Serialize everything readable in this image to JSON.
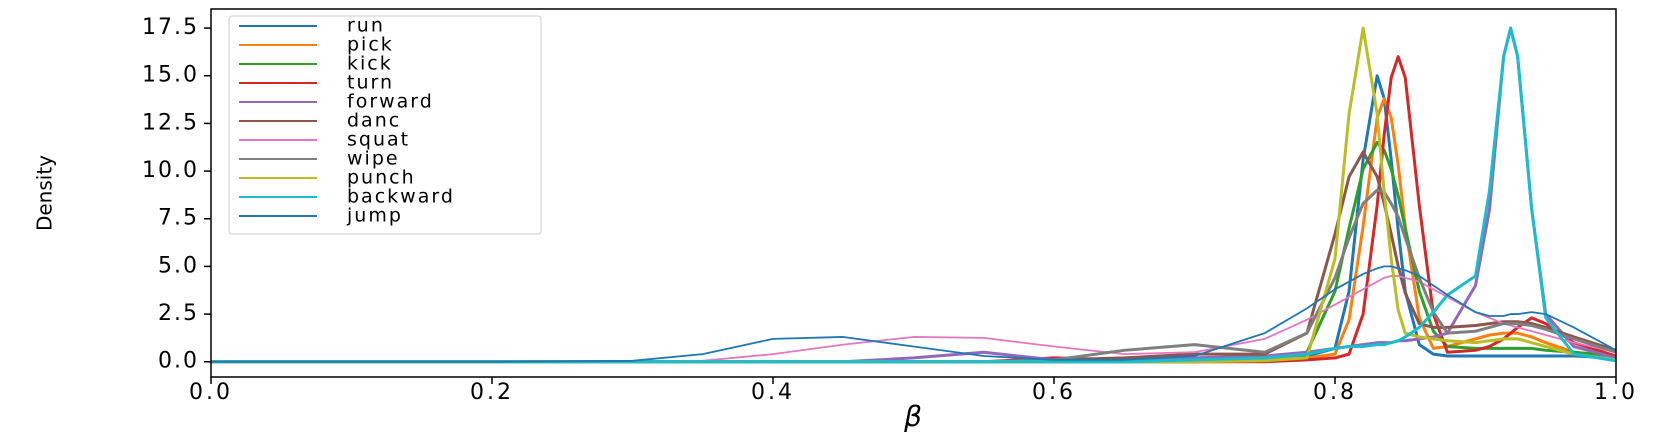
{
  "chart_data": {
    "type": "line",
    "x_label": "β",
    "y_label": "Density",
    "x": [
      0,
      0.1,
      0.2,
      0.3,
      0.35,
      0.4,
      0.45,
      0.5,
      0.55,
      0.6,
      0.65,
      0.7,
      0.75,
      0.78,
      0.8,
      0.81,
      0.82,
      0.83,
      0.835,
      0.84,
      0.845,
      0.85,
      0.86,
      0.87,
      0.88,
      0.9,
      0.91,
      0.92,
      0.925,
      0.93,
      0.94,
      0.95,
      0.97,
      1.0
    ],
    "xlim": [
      0,
      1
    ],
    "xticks": [
      {
        "value": 0,
        "label": "0.0"
      },
      0.2,
      0.4,
      0.6,
      0.8,
      {
        "value": 1,
        "label": "1.0"
      }
    ],
    "ylim": [
      -0.8,
      18.5
    ],
    "yticks": [
      {
        "value": 0,
        "label": "0.0"
      },
      2.5,
      {
        "value": 5,
        "label": "5.0"
      },
      7.5,
      {
        "value": 10,
        "label": "10.0"
      },
      12.5,
      {
        "value": 15,
        "label": "15.0"
      },
      17.5
    ],
    "legend": "upper left",
    "series": [
      {
        "name": "run",
        "color": "#1f77b4",
        "linewidth": 3,
        "values": [
          0,
          0,
          0,
          0,
          0,
          0,
          0,
          0,
          0,
          0,
          0,
          0,
          0.1,
          0.3,
          0.7,
          3.7,
          10.6,
          15,
          13.8,
          10.6,
          6.9,
          3.7,
          0.9,
          0.4,
          0.3,
          0.3,
          0.3,
          0.3,
          0.3,
          0.3,
          0.3,
          0.3,
          0.3,
          0.2
        ]
      },
      {
        "name": "pick",
        "color": "#ff7f0e",
        "linewidth": 3,
        "values": [
          0,
          0,
          0,
          0,
          0,
          0,
          0,
          0,
          0,
          0,
          0,
          0,
          0.1,
          0.2,
          0.4,
          2.2,
          7.1,
          12.8,
          13.8,
          12.8,
          10.3,
          7.1,
          2.3,
          0.7,
          0.8,
          1.2,
          1.4,
          1.5,
          1.5,
          1.5,
          1.3,
          1.0,
          0.5,
          0.2
        ]
      },
      {
        "name": "kick",
        "color": "#2ca02c",
        "linewidth": 3,
        "values": [
          0,
          0,
          0,
          0,
          0,
          0,
          0,
          0,
          0,
          0,
          0,
          0,
          0.1,
          0.5,
          3.7,
          7.0,
          10.1,
          11.5,
          11.1,
          10.1,
          8.7,
          7.0,
          3.7,
          1.6,
          0.8,
          0.7,
          0.7,
          0.7,
          0.7,
          0.7,
          0.7,
          0.6,
          0.5,
          0.3
        ]
      },
      {
        "name": "turn",
        "color": "#d62728",
        "linewidth": 3,
        "values": [
          0,
          0,
          0,
          0,
          0,
          0,
          0,
          0,
          0,
          0.2,
          0.1,
          0,
          0,
          0.1,
          0.2,
          0.4,
          2.5,
          8.2,
          11.9,
          14.9,
          16,
          14.9,
          8.2,
          2.5,
          0.5,
          0.6,
          0.8,
          1.2,
          1.5,
          1.8,
          2.3,
          2.0,
          1.0,
          0.3
        ]
      },
      {
        "name": "forward",
        "color": "#9467bd",
        "linewidth": 3,
        "values": [
          0,
          0,
          0,
          0,
          0,
          0,
          0,
          0.2,
          0.5,
          0.1,
          0.1,
          0.2,
          0.3,
          0.5,
          0.7,
          0.8,
          0.9,
          1.0,
          1.0,
          1.0,
          1.1,
          1.1,
          1.2,
          1.3,
          1.5,
          4.0,
          8.0,
          16.0,
          17.5,
          16.0,
          8.0,
          2.5,
          0.8,
          0.2
        ]
      },
      {
        "name": "danc",
        "color": "#8c564b",
        "linewidth": 3,
        "values": [
          0,
          0,
          0,
          0,
          0,
          0,
          0,
          0,
          0,
          0.1,
          0.2,
          0.4,
          0.4,
          1.5,
          6.7,
          9.7,
          11,
          9.7,
          8.3,
          6.7,
          5.0,
          3.6,
          2.0,
          1.8,
          1.8,
          1.9,
          2.0,
          2.1,
          2.1,
          2.1,
          2.0,
          1.8,
          1.3,
          0.6
        ]
      },
      {
        "name": "squat",
        "color": "#e377c2",
        "linewidth": 1.8,
        "values": [
          0,
          0,
          0,
          0,
          0.05,
          0.4,
          0.9,
          1.3,
          1.25,
          0.8,
          0.4,
          0.5,
          1.2,
          2.2,
          3.0,
          3.4,
          3.8,
          4.2,
          4.4,
          4.5,
          4.5,
          4.4,
          4.2,
          3.8,
          3.4,
          2.6,
          2.3,
          2.0,
          1.9,
          1.8,
          1.6,
          1.4,
          1.0,
          0.5
        ]
      },
      {
        "name": "wipe",
        "color": "#7f7f7f",
        "linewidth": 3,
        "values": [
          0,
          0,
          0,
          0,
          0,
          0,
          0,
          0,
          0,
          0.1,
          0.6,
          0.9,
          0.5,
          1.5,
          4.4,
          6.5,
          8.3,
          9.0,
          8.9,
          8.3,
          7.6,
          6.5,
          4.4,
          2.6,
          1.5,
          1.6,
          1.8,
          2.0,
          2.0,
          2.0,
          1.9,
          1.7,
          1.2,
          0.5
        ]
      },
      {
        "name": "punch",
        "color": "#bcbd22",
        "linewidth": 3,
        "values": [
          0,
          0,
          0,
          0,
          0,
          0,
          0,
          0,
          0,
          0,
          0,
          0,
          0.05,
          0.2,
          5.4,
          13.0,
          17.5,
          13.0,
          8.9,
          5.4,
          2.7,
          1.5,
          1.3,
          1.2,
          1.1,
          1.0,
          1.1,
          1.2,
          1.2,
          1.2,
          1.0,
          0.8,
          0.4,
          0.1
        ]
      },
      {
        "name": "backward",
        "color": "#17becf",
        "linewidth": 3,
        "values": [
          0,
          0,
          0,
          0,
          0,
          0,
          0,
          0,
          0,
          0,
          0,
          0.1,
          0.2,
          0.4,
          0.7,
          0.8,
          0.8,
          0.9,
          0.9,
          1.0,
          1.1,
          1.3,
          1.8,
          2.6,
          3.5,
          4.5,
          9.0,
          16.0,
          17.5,
          16.0,
          8.0,
          2.3,
          0.4,
          0.05
        ]
      },
      {
        "name": "jump",
        "color": "#1f77b4",
        "linewidth": 1.8,
        "values": [
          0,
          0,
          0,
          0.05,
          0.4,
          1.2,
          1.3,
          0.8,
          0.3,
          0.1,
          0.1,
          0.3,
          1.5,
          2.8,
          3.8,
          4.2,
          4.6,
          4.9,
          5.0,
          5.0,
          4.9,
          4.8,
          4.5,
          4.0,
          3.5,
          2.6,
          2.4,
          2.4,
          2.5,
          2.5,
          2.6,
          2.5,
          1.8,
          0.6
        ]
      }
    ]
  }
}
